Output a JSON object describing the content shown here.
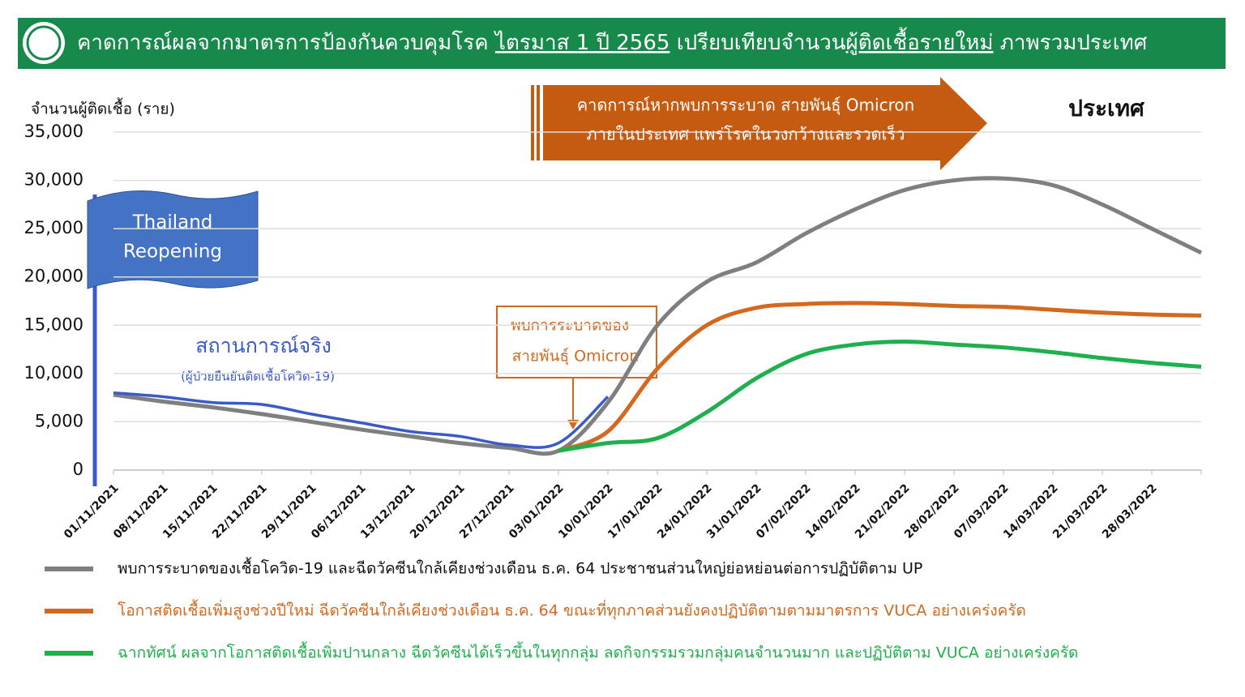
{
  "chart_data": {
    "type": "line",
    "title_parts": [
      {
        "text": "คาดการณ์ผลจากมาตรการป้องกันควบคุมโรค ",
        "underline": false
      },
      {
        "text": "ไตรมาส 1 ปี 2565",
        "underline": true
      },
      {
        "text": " เปรียบเทียบจำนวน",
        "underline": false
      },
      {
        "text": "ผู้ติดเชื้อรายใหม่",
        "underline": true
      },
      {
        "text": " ภาพรวมประเทศ",
        "underline": false
      }
    ],
    "y_label": "จำนวนผู้ติดเชื้อ (ราย)",
    "region_label": "ประเทศ",
    "arrow_text": [
      "คาดการณ์หากพบการระบาด สายพันธุ์ Omicron",
      "ภายในประเทศ แพร่โรคในวงกว้างและรวดเร็ว"
    ],
    "flag_text": [
      "Thailand",
      "Reopening"
    ],
    "actual_note": "(ผู้ป่วยยืนยันติดเชื้อโควิด-19)",
    "box_text": [
      "พบการระบาดของ",
      "สายพันธุ์ Omicron"
    ],
    "categories": [
      "01/11/2021",
      "08/11/2021",
      "15/11/2021",
      "22/11/2021",
      "29/11/2021",
      "06/12/2021",
      "13/12/2021",
      "20/12/2021",
      "27/12/2021",
      "03/01/2022",
      "10/01/2022",
      "17/01/2022",
      "24/01/2022",
      "31/01/2022",
      "07/02/2022",
      "14/02/2022",
      "21/02/2022",
      "28/02/2022",
      "07/03/2022",
      "14/03/2022",
      "21/03/2022",
      "28/03/2022",
      null
    ],
    "ylim": [
      0,
      35000
    ],
    "yticks": [
      {
        "value": 0,
        "label": "0"
      },
      {
        "value": 5000,
        "label": "5,000"
      },
      {
        "value": 10000,
        "label": "10,000"
      },
      {
        "value": 15000,
        "label": "15,000"
      },
      {
        "value": 20000,
        "label": "20,000"
      },
      {
        "value": 25000,
        "label": "25,000"
      },
      {
        "value": 30000,
        "label": "30,000"
      },
      {
        "value": 35000,
        "label": "35,000"
      }
    ],
    "grid": true,
    "series": [
      {
        "name": "สถานการณ์จริง",
        "color": "#3a5bc7",
        "legend": false,
        "values": [
          8000,
          7600,
          7000,
          6800,
          5800,
          4900,
          4000,
          3500,
          2600,
          2800,
          7600,
          null,
          null,
          null,
          null,
          null,
          null,
          null,
          null,
          null,
          null,
          null,
          null
        ]
      },
      {
        "name": "พบการระบาดของเชื้อโควิด-19 และฉีดวัคซีนใกล้เคียงช่วงเดือน ธ.ค. 64 ประชาชนส่วนใหญ่ย่อหย่อนต่อการปฏิบัติตาม UP",
        "color": "#7f7f7f",
        "legend": true,
        "values": [
          7800,
          7100,
          6500,
          5800,
          5000,
          4200,
          3500,
          2800,
          2300,
          2000,
          7000,
          15000,
          19500,
          21500,
          24500,
          27000,
          29000,
          30000,
          30200,
          29500,
          27500,
          25000,
          22500
        ]
      },
      {
        "name": "โอกาสติดเชื้อเพิ่มสูงช่วงปีใหม่ ฉีดวัคซีนใกล้เคียงช่วงเดือน ธ.ค. 64 ขณะที่ทุกภาคส่วนยังคงปฏิบัติตามตามมาตรการ VUCA อย่างเคร่งครัด",
        "color": "#d2691e",
        "legend": true,
        "values": [
          null,
          null,
          null,
          null,
          null,
          null,
          null,
          null,
          null,
          2000,
          4000,
          10500,
          15000,
          16800,
          17200,
          17300,
          17200,
          17000,
          16900,
          16600,
          16300,
          16100,
          16000
        ]
      },
      {
        "name": "ฉากทัศน์ ผลจากโอกาสติดเชื้อเพิ่มปานกลาง ฉีดวัคซีนได้เร็วขึ้นในทุกกลุ่ม ลดกิจกรรมรวมกลุ่มคนจำนวนมาก และปฏิบัติตาม VUCA อย่างเคร่งครัด",
        "color": "#1fb04e",
        "legend": true,
        "values": [
          null,
          null,
          null,
          null,
          null,
          null,
          null,
          null,
          null,
          2000,
          2800,
          3300,
          6000,
          9500,
          12000,
          13000,
          13300,
          13000,
          12700,
          12200,
          11600,
          11100,
          10700
        ]
      }
    ]
  }
}
